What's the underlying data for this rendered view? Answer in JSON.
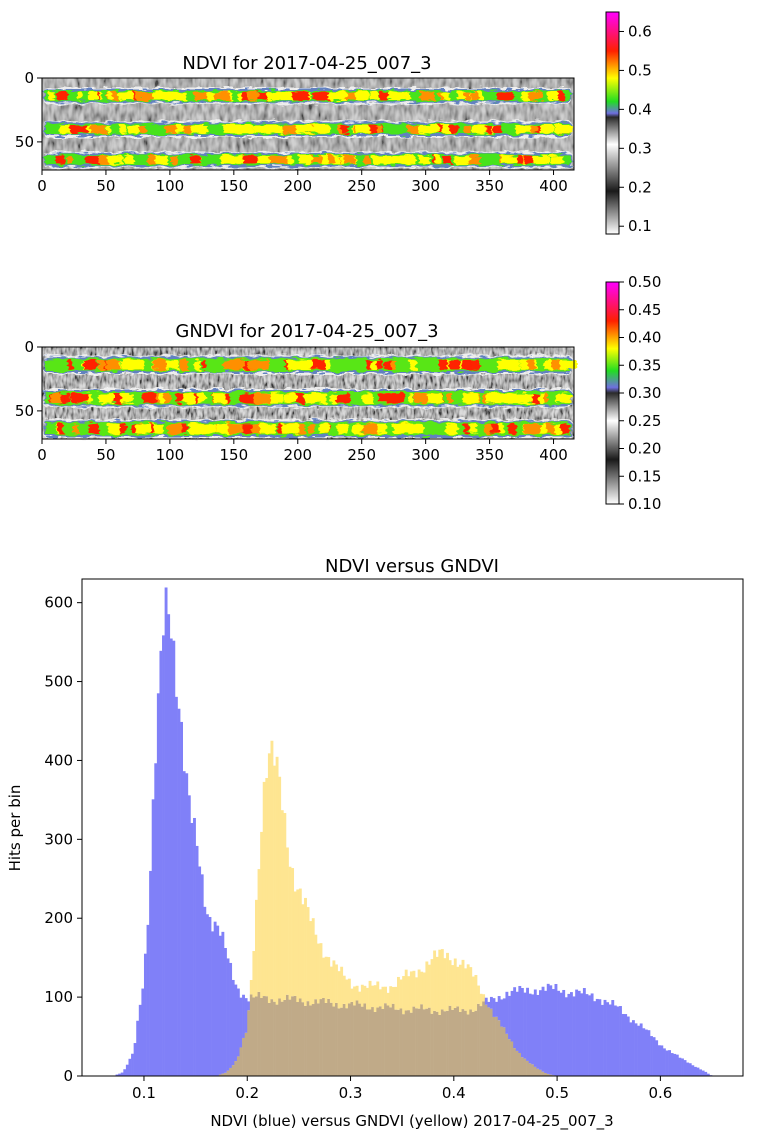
{
  "chart_data": [
    {
      "type": "heatmap",
      "title": "NDVI for 2017-04-25_007_3",
      "xlabel": "",
      "ylabel": "",
      "xlim": [
        0,
        416
      ],
      "ylim": [
        72,
        0
      ],
      "xticks": [
        0,
        50,
        100,
        150,
        200,
        250,
        300,
        350,
        400
      ],
      "yticks": [
        0,
        50
      ],
      "image_shape": [
        72,
        416
      ],
      "vegetation_rows": [
        {
          "center_y": 14,
          "half_width": 5
        },
        {
          "center_y": 40,
          "half_width": 5
        },
        {
          "center_y": 64,
          "half_width": 5
        }
      ],
      "colorbar": {
        "min": 0.08,
        "max": 0.65,
        "ticks": [
          0.1,
          0.2,
          0.3,
          0.4,
          0.5,
          0.6
        ],
        "colormap": [
          {
            "value": 0.08,
            "color": "#ffffff"
          },
          {
            "value": 0.19,
            "color": "#1a1a1a"
          },
          {
            "value": 0.31,
            "color": "#ffffff"
          },
          {
            "value": 0.38,
            "color": "#2a2a2a"
          },
          {
            "value": 0.39,
            "color": "#6f6fe0"
          },
          {
            "value": 0.42,
            "color": "#22dd22"
          },
          {
            "value": 0.48,
            "color": "#ffff00"
          },
          {
            "value": 0.55,
            "color": "#ff2000"
          },
          {
            "value": 0.65,
            "color": "#ff00ff"
          }
        ]
      }
    },
    {
      "type": "heatmap",
      "title": "GNDVI for 2017-04-25_007_3",
      "xlabel": "",
      "ylabel": "",
      "xlim": [
        0,
        416
      ],
      "ylim": [
        72,
        0
      ],
      "xticks": [
        0,
        50,
        100,
        150,
        200,
        250,
        300,
        350,
        400
      ],
      "yticks": [
        0,
        50
      ],
      "image_shape": [
        72,
        416
      ],
      "vegetation_rows": [
        {
          "center_y": 14,
          "half_width": 6
        },
        {
          "center_y": 40,
          "half_width": 6
        },
        {
          "center_y": 64,
          "half_width": 6
        }
      ],
      "colorbar": {
        "min": 0.1,
        "max": 0.5,
        "ticks": [
          0.1,
          0.15,
          0.2,
          0.25,
          0.3,
          0.35,
          0.4,
          0.45,
          0.5
        ],
        "colormap": [
          {
            "value": 0.1,
            "color": "#ffffff"
          },
          {
            "value": 0.18,
            "color": "#1a1a1a"
          },
          {
            "value": 0.25,
            "color": "#ffffff"
          },
          {
            "value": 0.3,
            "color": "#2a2a2a"
          },
          {
            "value": 0.31,
            "color": "#6f6fe0"
          },
          {
            "value": 0.34,
            "color": "#22dd22"
          },
          {
            "value": 0.38,
            "color": "#ffff00"
          },
          {
            "value": 0.43,
            "color": "#ff2000"
          },
          {
            "value": 0.5,
            "color": "#ff00ff"
          }
        ]
      }
    },
    {
      "type": "bar",
      "title": "NDVI versus GNDVI",
      "xlabel": "NDVI (blue) versus GNDVI (yellow) 2017-04-25_007_3",
      "ylabel": "Hits per bin",
      "xlim": [
        0.04,
        0.68
      ],
      "ylim": [
        0,
        630
      ],
      "xticks": [
        0.1,
        0.2,
        0.3,
        0.4,
        0.5,
        0.6
      ],
      "yticks": [
        0,
        100,
        200,
        300,
        400,
        500,
        600
      ],
      "grid": false,
      "bin_width": 0.0025,
      "overlap_color": "#c0aa88",
      "series": [
        {
          "color": "#8080f8",
          "x_range": [
            0.07,
            0.65
          ],
          "profile": [
            [
              0.07,
              0
            ],
            [
              0.08,
              5
            ],
            [
              0.09,
              30
            ],
            [
              0.1,
              130
            ],
            [
              0.105,
              230
            ],
            [
              0.11,
              380
            ],
            [
              0.115,
              490
            ],
            [
              0.12,
              580
            ],
            [
              0.125,
              585
            ],
            [
              0.13,
              530
            ],
            [
              0.135,
              470
            ],
            [
              0.14,
              390
            ],
            [
              0.145,
              330
            ],
            [
              0.15,
              295
            ],
            [
              0.155,
              255
            ],
            [
              0.16,
              215
            ],
            [
              0.165,
              200
            ],
            [
              0.17,
              195
            ],
            [
              0.175,
              178
            ],
            [
              0.18,
              152
            ],
            [
              0.185,
              128
            ],
            [
              0.19,
              112
            ],
            [
              0.2,
              100
            ],
            [
              0.22,
              98
            ],
            [
              0.25,
              96
            ],
            [
              0.3,
              90
            ],
            [
              0.35,
              85
            ],
            [
              0.4,
              83
            ],
            [
              0.42,
              85
            ],
            [
              0.43,
              92
            ],
            [
              0.45,
              105
            ],
            [
              0.48,
              110
            ],
            [
              0.5,
              110
            ],
            [
              0.52,
              105
            ],
            [
              0.54,
              100
            ],
            [
              0.56,
              85
            ],
            [
              0.58,
              65
            ],
            [
              0.6,
              40
            ],
            [
              0.62,
              22
            ],
            [
              0.64,
              8
            ],
            [
              0.65,
              0
            ]
          ]
        },
        {
          "color": "#fee591",
          "x_range": [
            0.17,
            0.5
          ],
          "profile": [
            [
              0.17,
              0
            ],
            [
              0.18,
              5
            ],
            [
              0.19,
              20
            ],
            [
              0.2,
              60
            ],
            [
              0.205,
              140
            ],
            [
              0.21,
              250
            ],
            [
              0.215,
              355
            ],
            [
              0.22,
              405
            ],
            [
              0.225,
              400
            ],
            [
              0.23,
              375
            ],
            [
              0.235,
              335
            ],
            [
              0.24,
              290
            ],
            [
              0.245,
              255
            ],
            [
              0.25,
              235
            ],
            [
              0.26,
              200
            ],
            [
              0.27,
              170
            ],
            [
              0.28,
              148
            ],
            [
              0.29,
              130
            ],
            [
              0.3,
              118
            ],
            [
              0.32,
              112
            ],
            [
              0.34,
              115
            ],
            [
              0.36,
              130
            ],
            [
              0.38,
              148
            ],
            [
              0.39,
              155
            ],
            [
              0.4,
              150
            ],
            [
              0.41,
              140
            ],
            [
              0.42,
              125
            ],
            [
              0.43,
              100
            ],
            [
              0.44,
              75
            ],
            [
              0.45,
              55
            ],
            [
              0.46,
              35
            ],
            [
              0.47,
              20
            ],
            [
              0.48,
              10
            ],
            [
              0.49,
              3
            ],
            [
              0.5,
              0
            ]
          ]
        }
      ]
    }
  ]
}
